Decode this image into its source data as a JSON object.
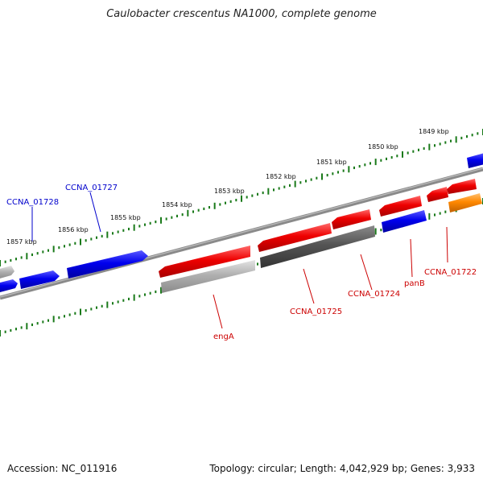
{
  "title": "Caulobacter crescentus NA1000, complete genome",
  "footer": {
    "accession": "Accession: NC_011916",
    "summary": "Topology: circular; Length: 4,042,929 bp; Genes: 3,933"
  },
  "colors": {
    "plus_strand": "#0000ee",
    "minus_strand": "#ee0000",
    "pseudo_grey": "#999999",
    "dark_grey": "#555555",
    "orange": "#ff8800",
    "scale_dots": "#1a7a1a",
    "backbone": "#8a8a8a"
  },
  "scale_labels": [
    "1849 kbp",
    "1850 kbp",
    "1851 kbp",
    "1852 kbp",
    "1853 kbp",
    "1854 kbp",
    "1855 kbp",
    "1856 kbp",
    "1857 kbp"
  ],
  "gene_labels": [
    {
      "text": "CCNA_01728",
      "color": "#0000cc"
    },
    {
      "text": "CCNA_01727",
      "color": "#0000cc"
    },
    {
      "text": "engA",
      "color": "#cc0000"
    },
    {
      "text": "CCNA_01725",
      "color": "#cc0000"
    },
    {
      "text": "CCNA_01724",
      "color": "#cc0000"
    },
    {
      "text": "panB",
      "color": "#cc0000"
    },
    {
      "text": "CCNA_01722",
      "color": "#cc0000"
    }
  ]
}
